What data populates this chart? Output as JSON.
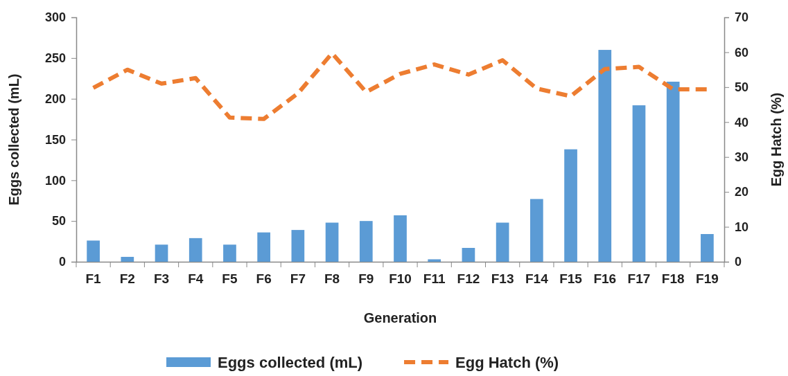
{
  "chart_data": {
    "type": "bar",
    "xlabel": "Generation",
    "ylabel": "Eggs collected  (mL)",
    "y2label": "Egg Hatch (%)",
    "categories": [
      "F1",
      "F2",
      "F3",
      "F4",
      "F5",
      "F6",
      "F7",
      "F8",
      "F9",
      "F10",
      "F11",
      "F12",
      "F13",
      "F14",
      "F15",
      "F16",
      "F17",
      "F18",
      "F19"
    ],
    "series": [
      {
        "name": "Eggs collected (mL)",
        "color": "#5b9bd5",
        "values": [
          26,
          6,
          21,
          29,
          21,
          36,
          39,
          48,
          50,
          57,
          3,
          17,
          48,
          77,
          138,
          260,
          192,
          221,
          34
        ]
      },
      {
        "name": "Egg Hatch (%)",
        "type": "line",
        "axis": "y2",
        "color": "#ed7d31",
        "line_style": "dashed",
        "values": [
          49.8,
          55,
          51,
          52.6,
          41.3,
          40.9,
          48.2,
          59.7,
          48.6,
          53.8,
          56.5,
          53.6,
          57.7,
          49.6,
          47.4,
          55.2,
          55.8,
          49.4,
          49.4
        ]
      }
    ],
    "ylim": [
      0,
      300
    ],
    "yticks": [
      0,
      50,
      100,
      150,
      200,
      250,
      300
    ],
    "y2lim": [
      0,
      70
    ],
    "y2ticks": [
      0,
      10,
      20,
      30,
      40,
      50,
      60,
      70
    ],
    "legend": "bottom"
  }
}
